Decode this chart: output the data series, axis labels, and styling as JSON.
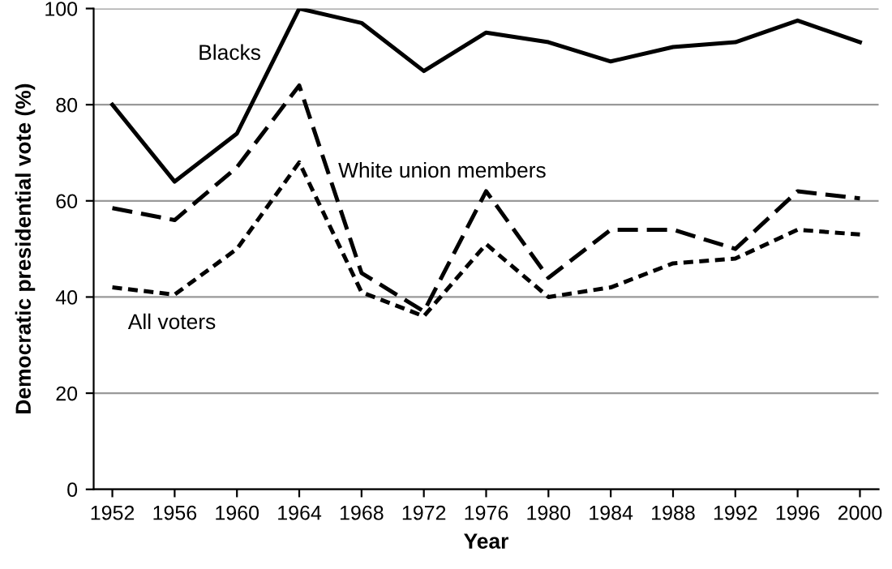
{
  "chart_data": {
    "type": "line",
    "xlabel": "Year",
    "ylabel": "Democratic presidential vote (%)",
    "x": [
      1952,
      1956,
      1960,
      1964,
      1968,
      1972,
      1976,
      1980,
      1984,
      1988,
      1992,
      1996,
      2000
    ],
    "xlim": [
      1950.8,
      2001.2
    ],
    "xticks": [
      1952,
      1956,
      1960,
      1964,
      1968,
      1972,
      1976,
      1980,
      1984,
      1988,
      1992,
      1996,
      2000
    ],
    "ylim": [
      0,
      100
    ],
    "yticks": [
      0,
      20,
      40,
      60,
      80,
      100
    ],
    "grid": "y",
    "legend": false,
    "marker": "none",
    "series": [
      {
        "name": "Blacks",
        "color": "#000000",
        "line_style": "solid",
        "values": [
          80,
          64,
          74,
          100,
          97,
          87,
          95,
          93,
          89,
          92,
          93,
          97.5,
          93
        ]
      },
      {
        "name": "White union members",
        "color": "#000000",
        "line_style": "dashed",
        "values": [
          58.5,
          56,
          67,
          84,
          45,
          37,
          62,
          44,
          54,
          54,
          50,
          62,
          60.5
        ]
      },
      {
        "name": "All voters",
        "color": "#000000",
        "line_style": "dotted",
        "values": [
          42,
          40.5,
          50,
          68,
          41,
          36,
          51,
          40,
          42,
          47,
          48,
          54,
          53
        ]
      }
    ]
  }
}
